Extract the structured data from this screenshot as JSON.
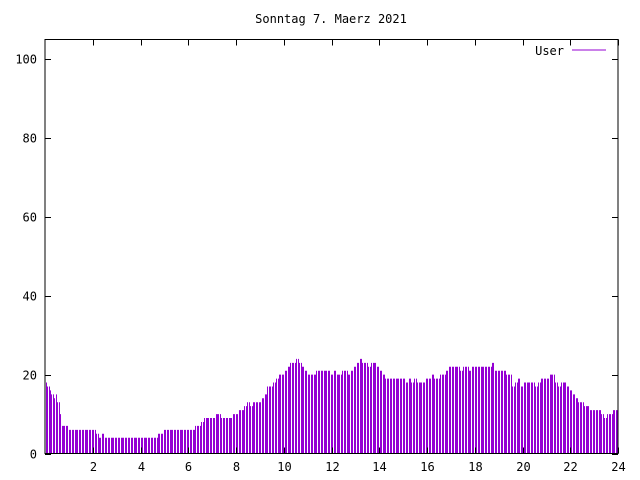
{
  "chart_data": {
    "type": "bar",
    "title": "Sonntag 7. Maerz 2021",
    "xlabel": "",
    "ylabel": "",
    "xlim": [
      0,
      24
    ],
    "ylim": [
      0,
      105
    ],
    "x_ticks": [
      "2",
      "4",
      "6",
      "8",
      "10",
      "12",
      "14",
      "16",
      "18",
      "20",
      "22",
      "24"
    ],
    "y_ticks": [
      "0",
      "20",
      "40",
      "60",
      "80",
      "100"
    ],
    "grid": false,
    "legend_position": "top-right",
    "bar_width_hours": 0.0833,
    "series": [
      {
        "name": "User",
        "color": "#9400d3",
        "values": [
          18,
          17,
          17,
          16,
          15,
          15,
          14,
          15,
          13,
          13,
          10,
          7,
          7,
          7,
          7,
          7,
          6,
          6,
          6,
          6,
          6,
          6,
          6,
          6,
          6,
          6,
          6,
          6,
          6,
          6,
          6,
          6,
          6,
          6,
          6,
          5,
          5,
          4,
          4,
          5,
          5,
          4,
          4,
          4,
          4,
          4,
          4,
          4,
          4,
          4,
          4,
          4,
          4,
          4,
          4,
          4,
          4,
          4,
          4,
          4,
          4,
          4,
          4,
          4,
          4,
          4,
          4,
          4,
          4,
          4,
          4,
          4,
          4,
          4,
          4,
          4,
          4,
          4,
          5,
          5,
          5,
          5,
          6,
          6,
          6,
          6,
          6,
          6,
          6,
          6,
          6,
          6,
          6,
          6,
          6,
          6,
          6,
          6,
          6,
          6,
          6,
          6,
          6,
          6,
          7,
          7,
          7,
          7,
          8,
          8,
          9,
          9,
          9,
          9,
          9,
          9,
          9,
          9,
          10,
          10,
          10,
          10,
          9,
          9,
          9,
          9,
          9,
          9,
          9,
          9,
          10,
          10,
          10,
          10,
          11,
          11,
          11,
          11,
          12,
          12,
          13,
          13,
          12,
          12,
          13,
          13,
          13,
          13,
          13,
          13,
          14,
          14,
          15,
          15,
          17,
          17,
          17,
          17,
          18,
          18,
          19,
          19,
          20,
          20,
          20,
          20,
          21,
          21,
          22,
          22,
          23,
          23,
          23,
          23,
          24,
          24,
          23,
          23,
          22,
          22,
          21,
          21,
          20,
          20,
          20,
          20,
          20,
          20,
          21,
          21,
          21,
          21,
          21,
          21,
          21,
          21,
          21,
          21,
          20,
          20,
          21,
          21,
          20,
          20,
          20,
          20,
          21,
          21,
          21,
          21,
          20,
          20,
          21,
          21,
          22,
          22,
          23,
          23,
          24,
          24,
          23,
          23,
          23,
          23,
          22,
          22,
          23,
          23,
          23,
          23,
          22,
          22,
          21,
          21,
          20,
          20,
          19,
          19,
          19,
          19,
          19,
          19,
          19,
          19,
          19,
          19,
          19,
          19,
          19,
          19,
          18,
          18,
          19,
          19,
          18,
          18,
          19,
          19,
          18,
          18,
          18,
          18,
          18,
          18,
          19,
          19,
          19,
          19,
          20,
          20,
          19,
          19,
          19,
          19,
          20,
          20,
          20,
          20,
          21,
          21,
          22,
          22,
          22,
          22,
          22,
          22,
          22,
          22,
          21,
          21,
          22,
          22,
          22,
          22,
          21,
          21,
          22,
          22,
          22,
          22,
          22,
          22,
          22,
          22,
          22,
          22,
          22,
          22,
          22,
          22,
          23,
          23,
          21,
          21,
          21,
          21,
          21,
          21,
          21,
          21,
          20,
          20,
          20,
          20,
          17,
          17,
          18,
          18,
          19,
          19,
          17,
          17,
          18,
          18,
          18,
          18,
          18,
          18,
          18,
          18,
          17,
          17,
          18,
          18,
          19,
          19,
          19,
          19,
          19,
          19,
          20,
          20,
          20,
          20,
          18,
          18,
          17,
          17,
          18,
          18,
          18,
          18,
          17,
          17,
          16,
          16,
          15,
          15,
          14,
          14,
          13,
          13,
          13,
          13,
          12,
          12,
          12,
          12,
          11,
          11,
          11,
          11,
          11,
          11,
          11,
          11,
          10,
          10,
          9,
          9,
          10,
          10,
          10,
          10,
          11,
          11,
          11,
          11
        ]
      }
    ]
  }
}
